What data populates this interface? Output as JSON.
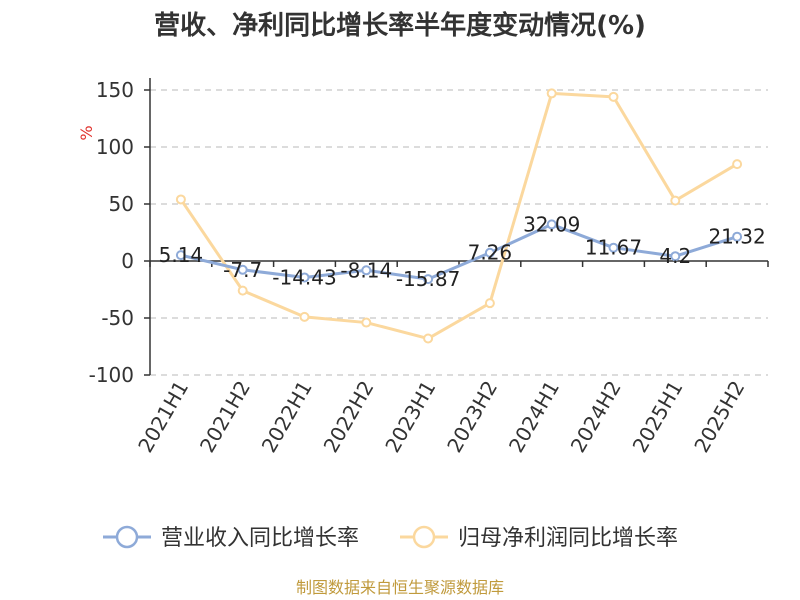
{
  "chart_data": {
    "type": "line",
    "title": "营收、净利同比增长率半年度变动情况(%)",
    "ylabel": "%",
    "xlabel": "",
    "ylim": [
      -100,
      150
    ],
    "yticks": [
      150,
      100,
      50,
      0,
      -50,
      -100
    ],
    "grid": true,
    "legend_position": "bottom",
    "categories": [
      "2021H1",
      "2021H2",
      "2022H1",
      "2022H2",
      "2023H1",
      "2023H2",
      "2024H1",
      "2024H2",
      "2025H1",
      "2025H2"
    ],
    "series": [
      {
        "name": "营业收入同比增长率",
        "color": "#8eaad8",
        "values": [
          5.14,
          -7.7,
          -14.43,
          -8.14,
          -15.87,
          7.26,
          32.09,
          11.67,
          4.2,
          21.32
        ],
        "labels": [
          "5.14",
          "-7.7",
          "-14.43",
          "-8.14",
          "-15.87",
          "7.26",
          "32.09",
          "11.67",
          "4.2",
          "21.32"
        ]
      },
      {
        "name": "归母净利润同比增长率",
        "color": "#fbd89e",
        "values": [
          54,
          -26,
          -49,
          -54,
          -68,
          -37,
          147,
          144,
          53,
          85
        ]
      }
    ],
    "source": "制图数据来自恒生聚源数据库"
  }
}
